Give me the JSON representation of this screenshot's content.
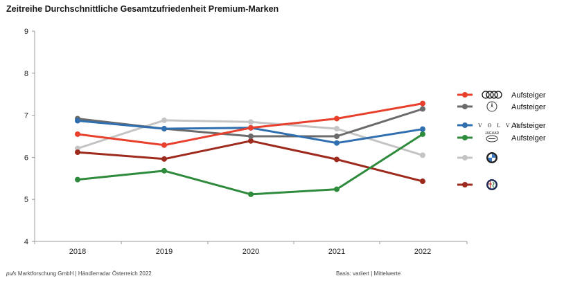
{
  "chart_data": {
    "type": "line",
    "title": "Zeitreihe Durchschnittliche Gesamtzufriedenheit Premium-Marken",
    "categories": [
      "2018",
      "2019",
      "2020",
      "2021",
      "2022"
    ],
    "ylim": [
      4,
      9
    ],
    "yticks": [
      4,
      5,
      6,
      7,
      8,
      9
    ],
    "grid": false,
    "legend_position": "right",
    "series": [
      {
        "brand_icon": "audi-logo-icon",
        "legend_label": "Aufsteiger",
        "color": "#E8402C",
        "values": [
          6.55,
          6.29,
          6.7,
          6.92,
          7.28
        ]
      },
      {
        "brand_icon": "mercedes-logo-icon",
        "legend_label": "Aufsteiger",
        "color": "#6B6B6B",
        "values": [
          6.92,
          6.68,
          6.5,
          6.5,
          7.15
        ]
      },
      {
        "brand_icon": "volvo-logo-icon",
        "legend_label": "Aufsteiger",
        "brand_text": "V O L V O",
        "color": "#2F6FAF",
        "values": [
          6.87,
          6.68,
          6.7,
          6.34,
          6.67
        ]
      },
      {
        "brand_icon": "jaguar-landrover-logo-icon",
        "legend_label": "Aufsteiger",
        "brand_text": "JAGUAR",
        "color": "#2E8B3C",
        "values": [
          5.47,
          5.68,
          5.12,
          5.24,
          6.55
        ]
      },
      {
        "brand_icon": "bmw-logo-icon",
        "legend_label": "",
        "color": "#C4C4C4",
        "values": [
          6.21,
          6.88,
          6.84,
          6.68,
          6.05
        ]
      },
      {
        "brand_icon": "alfa-romeo-logo-icon",
        "legend_label": "",
        "color": "#9E2A1E",
        "values": [
          6.12,
          5.96,
          6.39,
          5.95,
          5.43
        ]
      }
    ]
  },
  "footer": {
    "company_italic": "puls",
    "company_rest": " Marktforschung GmbH | Händlerradar Österreich 2022",
    "basis": "Basis: variiert | Mittelwerte"
  }
}
